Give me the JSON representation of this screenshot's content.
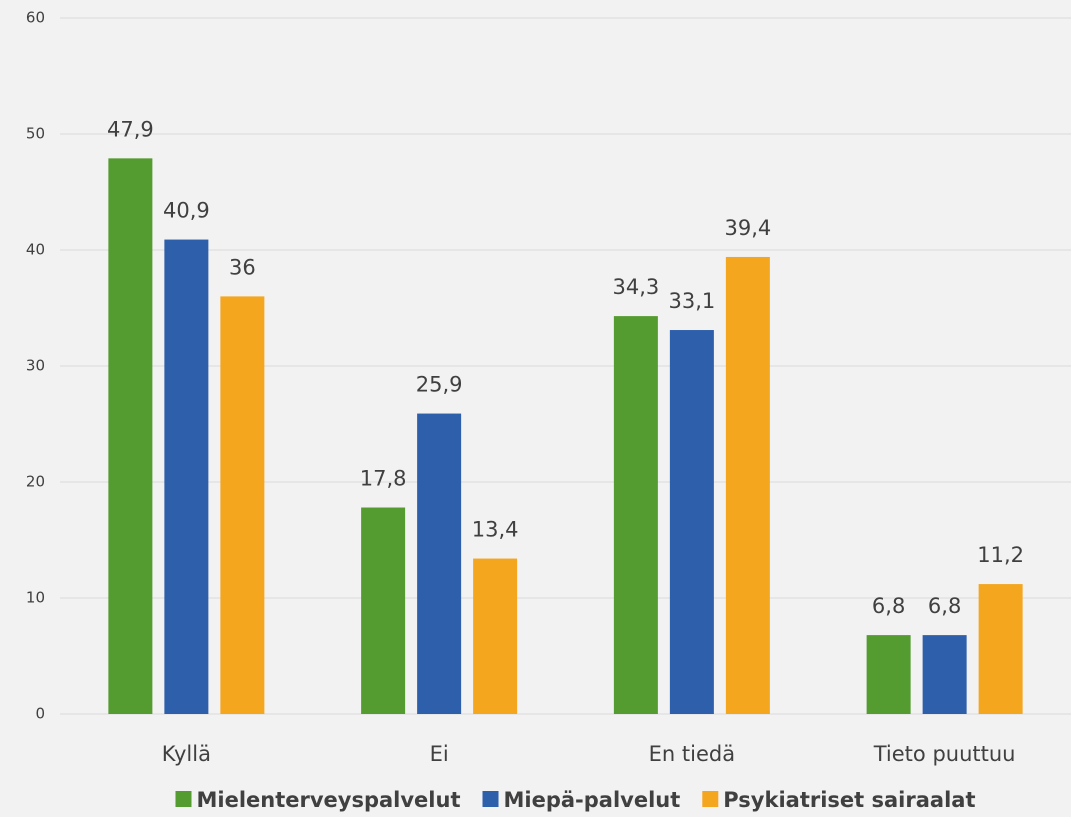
{
  "chart_data": {
    "type": "bar",
    "categories": [
      "Kyllä",
      "Ei",
      "En tiedä",
      "Tieto puuttuu"
    ],
    "series": [
      {
        "name": "Mielenterveyspalvelut",
        "color": "#549b30",
        "values": [
          47.9,
          17.8,
          34.3,
          6.8
        ],
        "value_labels": [
          "47,9",
          "17,8",
          "34,3",
          "6,8"
        ]
      },
      {
        "name": "Miepä-palvelut",
        "color": "#2e5fab",
        "values": [
          40.9,
          25.9,
          33.1,
          6.8
        ],
        "value_labels": [
          "40,9",
          "25,9",
          "33,1",
          "6,8"
        ]
      },
      {
        "name": "Psykiatriset sairaalat",
        "color": "#f5a61f",
        "values": [
          36,
          13.4,
          39.4,
          11.2
        ],
        "value_labels": [
          "36",
          "13,4",
          "39,4",
          "11,2"
        ]
      }
    ],
    "ylim": [
      0,
      60
    ],
    "yticks": [
      0,
      10,
      20,
      30,
      40,
      50,
      60
    ],
    "grid": true,
    "legend": "bottom"
  }
}
